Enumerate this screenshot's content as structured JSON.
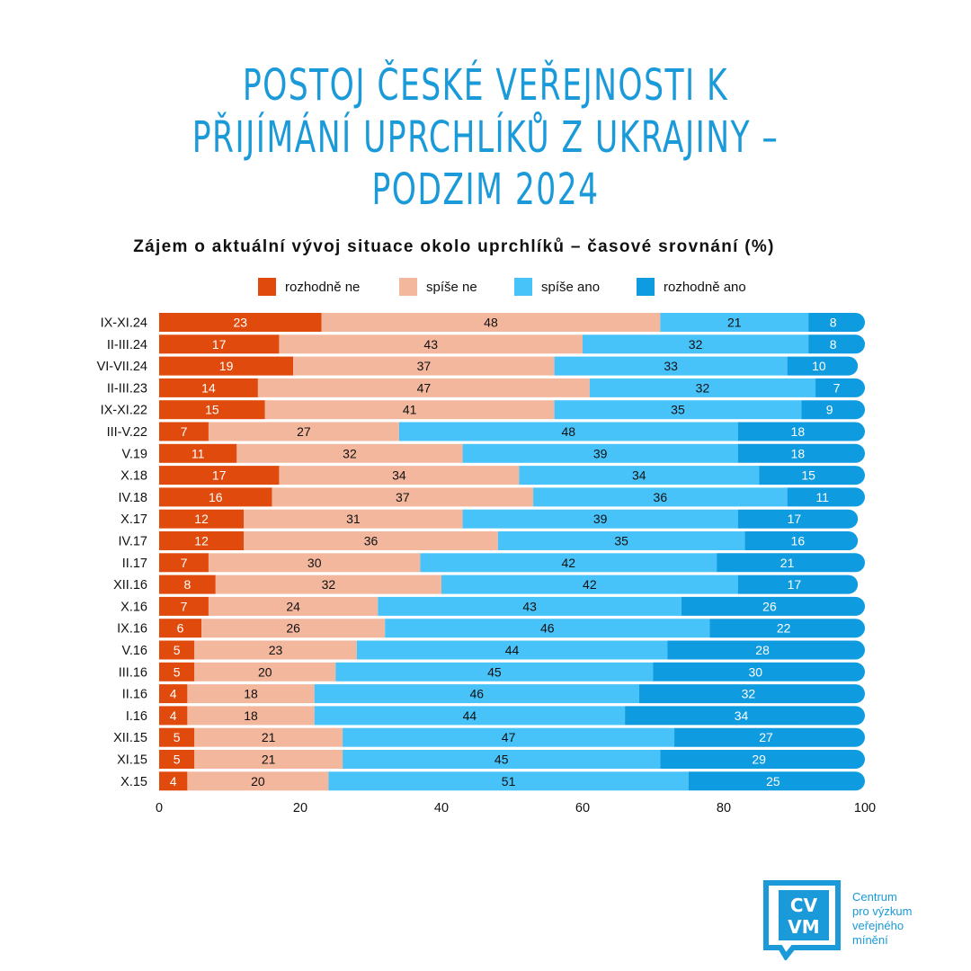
{
  "title_lines": [
    "POSTOJ ČESKÉ VEŘEJNOSTI K",
    "PŘIJÍMÁNÍ UPRCHLÍKŮ Z UKRAJINY –",
    "PODZIM 2024"
  ],
  "colors": {
    "title": "#1a9ad9",
    "rozhodne_ne": "#e04a0c",
    "spise_ne": "#f3b79e",
    "spise_ano": "#47c3fa",
    "rozhodne_ano": "#0e9be0"
  },
  "logo": {
    "glyph_top": "CV",
    "glyph_bottom": "VM",
    "text_lines": [
      "Centrum",
      "pro výzkum",
      "veřejného",
      "mínění"
    ]
  },
  "chart_data": {
    "type": "bar",
    "orientation": "horizontal",
    "stacked": true,
    "title": "Zájem o aktuální vývoj situace okolo uprchlíků – časové srovnání (%)",
    "categories": [
      "IX-XI.24",
      "II-III.24",
      "VI-VII.24",
      "II-III.23",
      "IX-XI.22",
      "III-V.22",
      "V.19",
      "X.18",
      "IV.18",
      "X.17",
      "IV.17",
      "II.17",
      "XII.16",
      "X.16",
      "IX.16",
      "V.16",
      "III.16",
      "II.16",
      "I.16",
      "XII.15",
      "XI.15",
      "X.15"
    ],
    "series": [
      {
        "name": "rozhodně ne",
        "color_key": "rozhodne_ne",
        "label_color": "#ffffff",
        "values": [
          23,
          17,
          19,
          14,
          15,
          7,
          11,
          17,
          16,
          12,
          12,
          7,
          8,
          7,
          6,
          5,
          5,
          4,
          4,
          5,
          5,
          4
        ]
      },
      {
        "name": "spíše ne",
        "color_key": "spise_ne",
        "label_color": "#111111",
        "values": [
          48,
          43,
          37,
          47,
          41,
          27,
          32,
          34,
          37,
          31,
          36,
          30,
          32,
          24,
          26,
          23,
          20,
          18,
          18,
          21,
          21,
          20
        ]
      },
      {
        "name": "spíše ano",
        "color_key": "spise_ano",
        "label_color": "#111111",
        "values": [
          21,
          32,
          33,
          32,
          35,
          48,
          39,
          34,
          36,
          39,
          35,
          42,
          42,
          43,
          46,
          44,
          45,
          46,
          44,
          47,
          45,
          51
        ]
      },
      {
        "name": "rozhodně ano",
        "color_key": "rozhodne_ano",
        "label_color": "#ffffff",
        "values": [
          8,
          8,
          10,
          7,
          9,
          18,
          18,
          15,
          11,
          17,
          16,
          21,
          17,
          26,
          22,
          28,
          30,
          32,
          34,
          27,
          29,
          25
        ]
      }
    ],
    "xlim": [
      0,
      100
    ],
    "xticks": [
      0,
      20,
      40,
      60,
      80,
      100
    ],
    "grid": false,
    "legend": "top"
  }
}
